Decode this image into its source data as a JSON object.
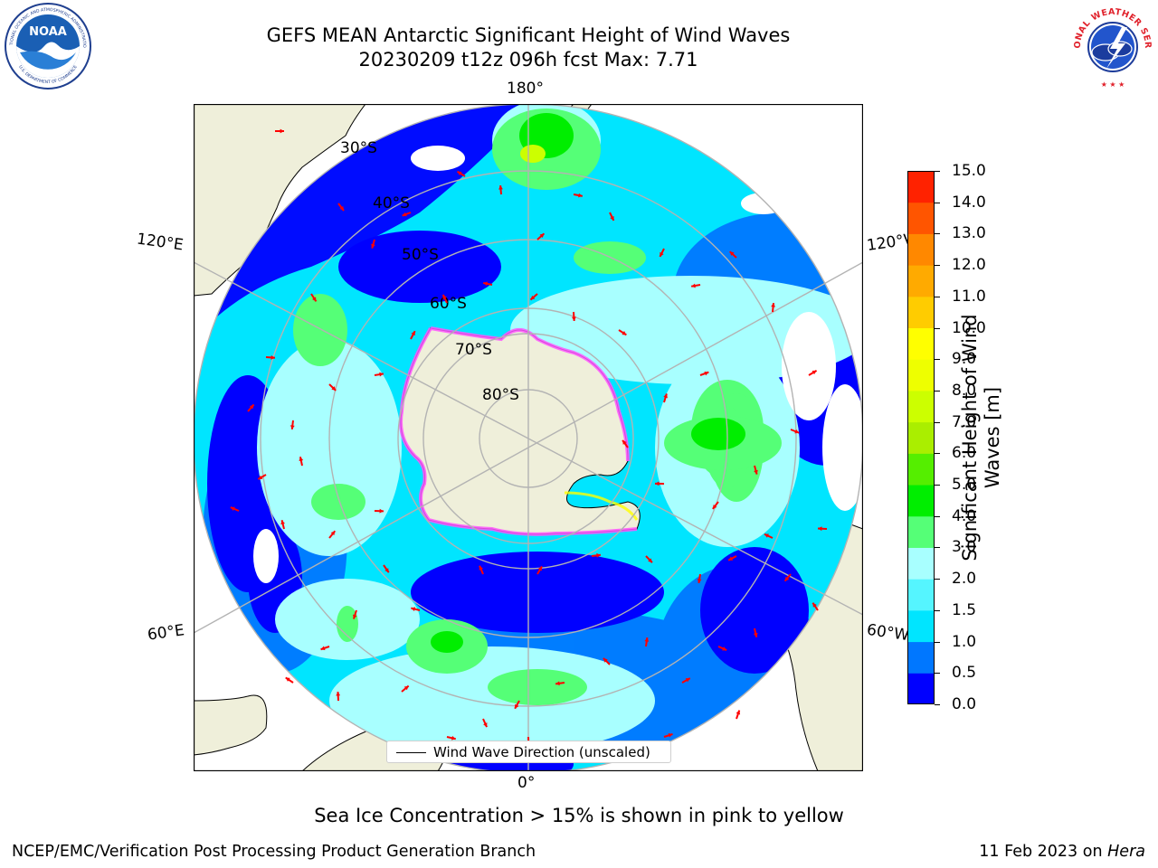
{
  "title": {
    "line1": "GEFS MEAN Antarctic Significant Height of Wind Waves",
    "line2": "20230209 t12z 096h fcst   Max: 7.71"
  },
  "logos": {
    "left": {
      "name": "NOAA",
      "ring_text": "NATIONAL OCEANIC AND ATMOSPHERIC ADMINISTRATION",
      "bottom_text": "U.S. DEPARTMENT OF COMMERCE"
    },
    "right": {
      "name": "NATIONAL WEATHER SERVICE"
    }
  },
  "map": {
    "projection": "South polar stereographic",
    "longitude_labels": {
      "top": "180°",
      "bottom": "0°",
      "upper_left": "120°E",
      "upper_right": "120°W",
      "lower_left": "60°E",
      "lower_right": "60°W"
    },
    "latitude_labels": [
      "30°S",
      "40°S",
      "50°S",
      "60°S",
      "70°S",
      "80°S"
    ],
    "colors": {
      "land": "#efefda",
      "graticule": "#b3b3b3",
      "arrows": "#ff0000",
      "ice_pink": "#ff55ff"
    }
  },
  "colorbar": {
    "title": "Significant Height of Wind Waves [m]",
    "title_line1": "Significant Height of Wind",
    "title_line2": "Waves [m]",
    "tick_labels": [
      "15.0",
      "14.0",
      "13.0",
      "12.0",
      "11.0",
      "10.0",
      "9.0",
      "8.0",
      "7.0",
      "6.0",
      "5.0",
      "4.0",
      "3.0",
      "2.0",
      "1.5",
      "1.0",
      "0.5",
      "0.0"
    ],
    "bins": [
      {
        "range": "0.0-0.5",
        "color": "#0000ff"
      },
      {
        "range": "0.5-1.0",
        "color": "#0077ff"
      },
      {
        "range": "1.0-1.5",
        "color": "#00e5ff"
      },
      {
        "range": "1.5-2.0",
        "color": "#55f5ff"
      },
      {
        "range": "2.0-3.0",
        "color": "#a8ffff"
      },
      {
        "range": "3.0-4.0",
        "color": "#55ff77"
      },
      {
        "range": "4.0-5.0",
        "color": "#00ee00"
      },
      {
        "range": "5.0-6.0",
        "color": "#55ee00"
      },
      {
        "range": "6.0-7.0",
        "color": "#aaee00"
      },
      {
        "range": "7.0-8.0",
        "color": "#ccff00"
      },
      {
        "range": "8.0-9.0",
        "color": "#eeff00"
      },
      {
        "range": "9.0-10.0",
        "color": "#ffff00"
      },
      {
        "range": "10.0-11.0",
        "color": "#ffcc00"
      },
      {
        "range": "11.0-12.0",
        "color": "#ffaa00"
      },
      {
        "range": "12.0-13.0",
        "color": "#ff8800"
      },
      {
        "range": "13.0-14.0",
        "color": "#ff5500"
      },
      {
        "range": "14.0-15.0",
        "color": "#ff2200"
      },
      {
        "range": "15.0",
        "color": "#ff0000"
      }
    ]
  },
  "legend": {
    "label": "Wind Wave Direction (unscaled)"
  },
  "note": "Sea Ice Concentration > 15% is shown in pink to yellow",
  "footer": {
    "left": "NCEP/EMC/Verification Post Processing Product Generation Branch",
    "date": "11 Feb 2023 on",
    "machine": "Hera"
  }
}
